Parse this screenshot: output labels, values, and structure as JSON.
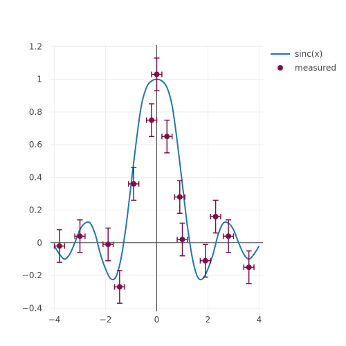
{
  "colors": {
    "curve": "#1f77b4",
    "measured": "#7f0f45",
    "grid": "#eeeeee",
    "zeroline": "#444444",
    "text": "#444444"
  },
  "chart_data": {
    "type": "scatter",
    "title": "",
    "xlabel": "",
    "ylabel": "",
    "xlim": [
      -4.15,
      4.15
    ],
    "ylim": [
      -0.42,
      1.21
    ],
    "x_ticks": [
      -4,
      -2,
      0,
      2,
      4
    ],
    "x_tick_labels": [
      "−4",
      "−2",
      "0",
      "2",
      "4"
    ],
    "y_ticks": [
      -0.4,
      -0.2,
      0,
      0.2,
      0.4,
      0.6,
      0.8,
      1,
      1.2
    ],
    "y_tick_labels": [
      "−0.4",
      "−0.2",
      "0",
      "0.2",
      "0.4",
      "0.6",
      "0.8",
      "1",
      "1.2"
    ],
    "grid": true,
    "legend_position": "top-right",
    "series": [
      {
        "name": "sinc(x)",
        "kind": "line",
        "x": [
          -4.0,
          -3.8,
          -3.6,
          -3.4,
          -3.2,
          -3.0,
          -2.8,
          -2.6,
          -2.4,
          -2.2,
          -2.0,
          -1.8,
          -1.6,
          -1.4,
          -1.2,
          -1.0,
          -0.8,
          -0.6,
          -0.4,
          -0.2,
          0.0,
          0.2,
          0.4,
          0.6,
          0.8,
          1.0,
          1.2,
          1.4,
          1.6,
          1.8,
          2.0,
          2.2,
          2.4,
          2.6,
          2.8,
          3.0,
          3.2,
          3.4,
          3.6,
          3.8,
          4.0
        ],
        "y": [
          -0.02,
          -0.07,
          -0.1,
          -0.07,
          0.0,
          0.08,
          0.12,
          0.12,
          0.05,
          -0.07,
          -0.16,
          -0.22,
          -0.21,
          -0.1,
          0.1,
          0.36,
          0.62,
          0.84,
          0.95,
          0.99,
          1.0,
          0.99,
          0.95,
          0.84,
          0.62,
          0.36,
          0.1,
          -0.1,
          -0.21,
          -0.22,
          -0.16,
          -0.07,
          0.05,
          0.12,
          0.12,
          0.08,
          0.0,
          -0.07,
          -0.1,
          -0.07,
          -0.02
        ]
      },
      {
        "name": "measured",
        "kind": "markers",
        "x": [
          -3.8,
          -3.0,
          -1.9,
          -1.45,
          -0.9,
          -0.2,
          0.0,
          0.4,
          0.9,
          1.0,
          1.9,
          2.3,
          2.8,
          3.6
        ],
        "y": [
          -0.02,
          0.04,
          -0.01,
          -0.27,
          0.36,
          0.75,
          1.03,
          0.65,
          0.28,
          0.02,
          -0.11,
          0.16,
          0.04,
          -0.15
        ],
        "error_y": [
          0.1,
          0.1,
          0.1,
          0.1,
          0.1,
          0.1,
          0.1,
          0.1,
          0.1,
          0.1,
          0.1,
          0.1,
          0.1,
          0.1
        ],
        "error_x": [
          0.2,
          0.2,
          0.2,
          0.2,
          0.2,
          0.2,
          0.2,
          0.2,
          0.2,
          0.2,
          0.2,
          0.2,
          0.2,
          0.2
        ]
      }
    ]
  }
}
